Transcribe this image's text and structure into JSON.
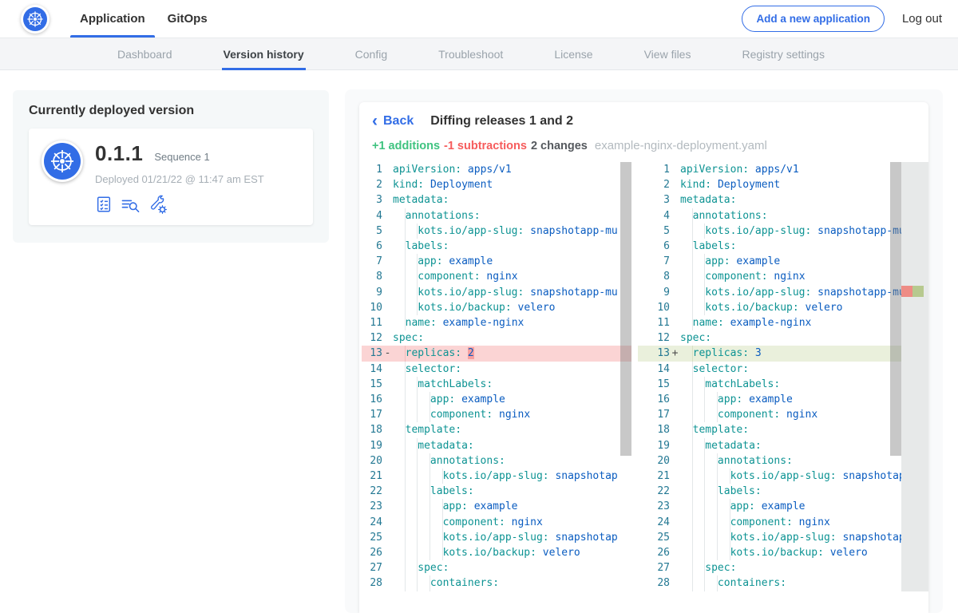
{
  "header": {
    "tabs": [
      {
        "label": "Application",
        "active": true
      },
      {
        "label": "GitOps",
        "active": false
      }
    ],
    "add_button_label": "Add a new application",
    "logout_label": "Log out"
  },
  "subnav": {
    "items": [
      {
        "label": "Dashboard",
        "active": false
      },
      {
        "label": "Version history",
        "active": true
      },
      {
        "label": "Config",
        "active": false
      },
      {
        "label": "Troubleshoot",
        "active": false
      },
      {
        "label": "License",
        "active": false
      },
      {
        "label": "View files",
        "active": false
      },
      {
        "label": "Registry settings",
        "active": false
      }
    ]
  },
  "deployed_card": {
    "title": "Currently deployed version",
    "version": "0.1.1",
    "sequence": "Sequence 1",
    "deployed_text": "Deployed 01/21/22 @ 11:47 am EST",
    "icons": [
      "config-checklist-icon",
      "file-search-icon",
      "troubleshoot-wrench-icon"
    ]
  },
  "diff": {
    "back_label": "Back",
    "title": "Diffing releases 1 and 2",
    "additions_label": "+1 additions",
    "subtractions_label": "-1 subtractions",
    "changes_label": "2 changes",
    "filename": "example-nginx-deployment.yaml",
    "colors": {
      "addition": "#3fc380",
      "subtraction": "#f65c5c",
      "accent": "#326de6",
      "removed_line_bg": "#fbd4d4",
      "removed_char_bg": "#f8a0a0",
      "added_line_bg": "#eaf0dc"
    },
    "left_lines": [
      {
        "n": 1,
        "t": "apiVersion: apps/v1"
      },
      {
        "n": 2,
        "t": "kind: Deployment"
      },
      {
        "n": 3,
        "t": "metadata:"
      },
      {
        "n": 4,
        "t": "  annotations:"
      },
      {
        "n": 5,
        "t": "    kots.io/app-slug: snapshotapp-mu"
      },
      {
        "n": 6,
        "t": "  labels:"
      },
      {
        "n": 7,
        "t": "    app: example"
      },
      {
        "n": 8,
        "t": "    component: nginx"
      },
      {
        "n": 9,
        "t": "    kots.io/app-slug: snapshotapp-mu"
      },
      {
        "n": 10,
        "t": "    kots.io/backup: velero"
      },
      {
        "n": 11,
        "t": "  name: example-nginx"
      },
      {
        "n": 12,
        "t": "spec:"
      },
      {
        "n": 13,
        "t": "  replicas: 2",
        "d": "-",
        "hl": "2"
      },
      {
        "n": 14,
        "t": "  selector:"
      },
      {
        "n": 15,
        "t": "    matchLabels:"
      },
      {
        "n": 16,
        "t": "      app: example"
      },
      {
        "n": 17,
        "t": "      component: nginx"
      },
      {
        "n": 18,
        "t": "  template:"
      },
      {
        "n": 19,
        "t": "    metadata:"
      },
      {
        "n": 20,
        "t": "      annotations:"
      },
      {
        "n": 21,
        "t": "        kots.io/app-slug: snapshotap"
      },
      {
        "n": 22,
        "t": "      labels:"
      },
      {
        "n": 23,
        "t": "        app: example"
      },
      {
        "n": 24,
        "t": "        component: nginx"
      },
      {
        "n": 25,
        "t": "        kots.io/app-slug: snapshotap"
      },
      {
        "n": 26,
        "t": "        kots.io/backup: velero"
      },
      {
        "n": 27,
        "t": "    spec:"
      },
      {
        "n": 28,
        "t": "      containers:"
      }
    ],
    "right_lines": [
      {
        "n": 1,
        "t": "apiVersion: apps/v1"
      },
      {
        "n": 2,
        "t": "kind: Deployment"
      },
      {
        "n": 3,
        "t": "metadata:"
      },
      {
        "n": 4,
        "t": "  annotations:"
      },
      {
        "n": 5,
        "t": "    kots.io/app-slug: snapshotapp-mu"
      },
      {
        "n": 6,
        "t": "  labels:"
      },
      {
        "n": 7,
        "t": "    app: example"
      },
      {
        "n": 8,
        "t": "    component: nginx"
      },
      {
        "n": 9,
        "t": "    kots.io/app-slug: snapshotapp-mu"
      },
      {
        "n": 10,
        "t": "    kots.io/backup: velero"
      },
      {
        "n": 11,
        "t": "  name: example-nginx"
      },
      {
        "n": 12,
        "t": "spec:"
      },
      {
        "n": 13,
        "t": "  replicas: 3",
        "d": "+"
      },
      {
        "n": 14,
        "t": "  selector:"
      },
      {
        "n": 15,
        "t": "    matchLabels:"
      },
      {
        "n": 16,
        "t": "      app: example"
      },
      {
        "n": 17,
        "t": "      component: nginx"
      },
      {
        "n": 18,
        "t": "  template:"
      },
      {
        "n": 19,
        "t": "    metadata:"
      },
      {
        "n": 20,
        "t": "      annotations:"
      },
      {
        "n": 21,
        "t": "        kots.io/app-slug: snapshotap"
      },
      {
        "n": 22,
        "t": "      labels:"
      },
      {
        "n": 23,
        "t": "        app: example"
      },
      {
        "n": 24,
        "t": "        component: nginx"
      },
      {
        "n": 25,
        "t": "        kots.io/app-slug: snapshotap"
      },
      {
        "n": 26,
        "t": "        kots.io/backup: velero"
      },
      {
        "n": 27,
        "t": "    spec:"
      },
      {
        "n": 28,
        "t": "      containers:"
      }
    ]
  }
}
